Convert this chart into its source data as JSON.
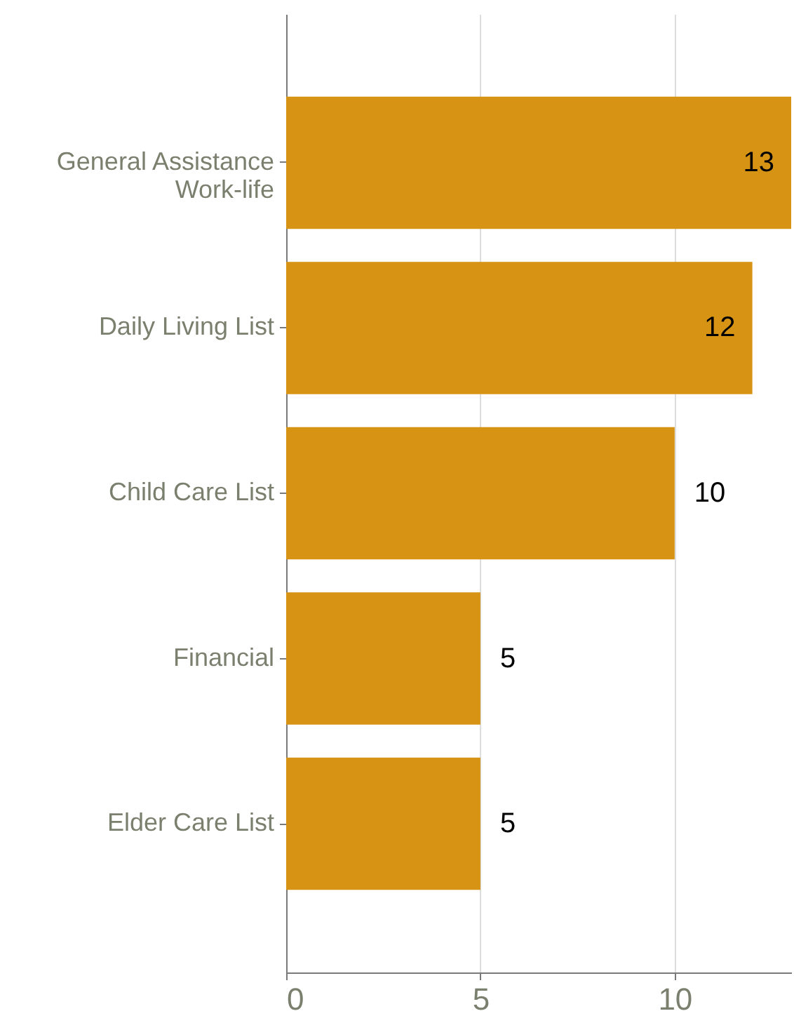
{
  "chart_data": {
    "type": "bar",
    "orientation": "horizontal",
    "categories": [
      "General Assistance\nWork-life",
      "Daily Living List",
      "Child Care List",
      "Financial",
      "Elder Care List"
    ],
    "values": [
      13,
      12,
      10,
      5,
      5
    ],
    "color": "#d69314",
    "xlim": [
      0,
      13
    ],
    "xticks": [
      0,
      5,
      10
    ],
    "grid": "x",
    "data_labels": true
  }
}
